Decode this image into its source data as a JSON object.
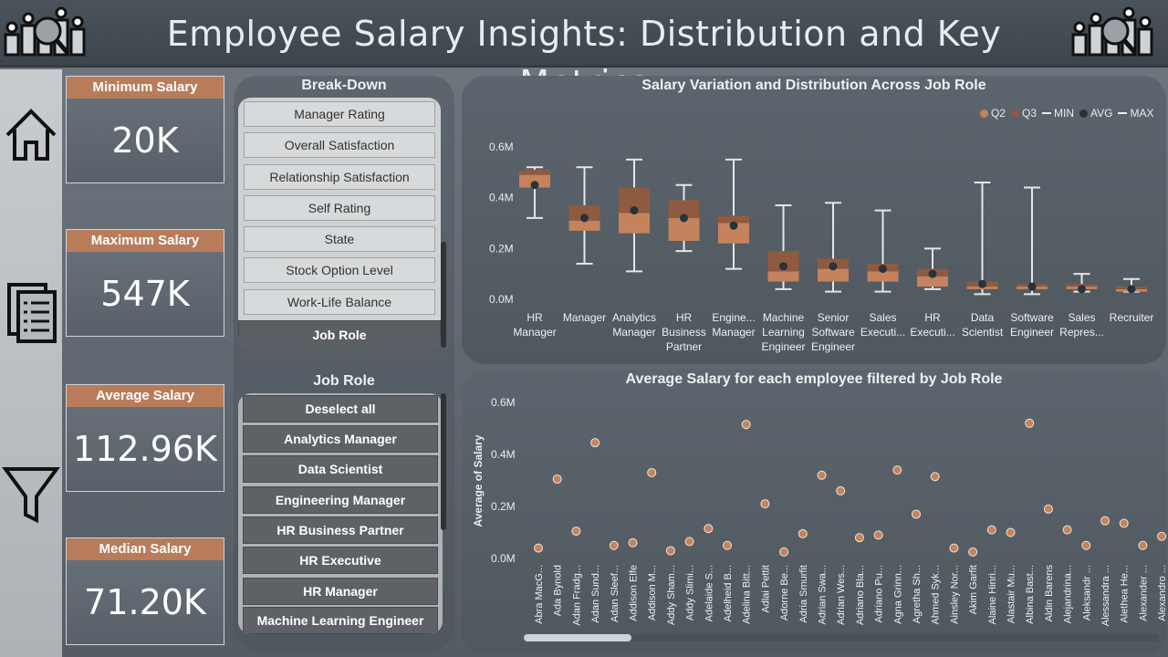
{
  "header": {
    "title": "Employee Salary Insights: Distribution and Key Metrics"
  },
  "colors": {
    "accent": "#b97c5a",
    "q2": "#c4835c",
    "q3": "#8e5a40",
    "avg": "#27323a",
    "whisker": "#e6e6e6"
  },
  "nav": {
    "items": [
      "home-icon",
      "document-icon",
      "filter-icon"
    ]
  },
  "kpis": [
    {
      "label": "Minimum Salary",
      "value": "20K"
    },
    {
      "label": "Maximum Salary",
      "value": "547K"
    },
    {
      "label": "Average Salary",
      "value": "112.96K"
    },
    {
      "label": "Median Salary",
      "value": "71.20K"
    }
  ],
  "breakdown": {
    "title": "Break-Down",
    "items": [
      "Manager Rating",
      "Overall Satisfaction",
      "Relationship Satisfaction",
      "Self Rating",
      "State",
      "Stock Option Level",
      "Work-Life Balance",
      "Job Role"
    ],
    "selected": "Job Role"
  },
  "jobrole_slicer": {
    "title": "Job Role",
    "items": [
      "Deselect all",
      "Analytics Manager",
      "Data Scientist",
      "Engineering Manager",
      "HR Business Partner",
      "HR Executive",
      "HR Manager",
      "Machine Learning Engineer"
    ]
  },
  "chart_data": [
    {
      "type": "box",
      "title": "Salary Variation and Distribution Across Job Role",
      "legend": [
        "Q2",
        "Q3",
        "MIN",
        "AVG",
        "MAX"
      ],
      "legend_position": "top-right",
      "ylim": [
        0,
        0.6
      ],
      "yticks": [
        "0.0M",
        "0.2M",
        "0.4M",
        "0.6M"
      ],
      "categories": [
        [
          "HR",
          "Manager"
        ],
        [
          "Manager"
        ],
        [
          "Analytics",
          "Manager"
        ],
        [
          "HR",
          "Business",
          "Partner"
        ],
        [
          "Engine...",
          "Manager"
        ],
        [
          "Machine",
          "Learning",
          "Engineer"
        ],
        [
          "Senior",
          "Software",
          "Engineer"
        ],
        [
          "Sales",
          "Executi..."
        ],
        [
          "HR",
          "Executi..."
        ],
        [
          "Data",
          "Scientist"
        ],
        [
          "Software",
          "Engineer"
        ],
        [
          "Sales",
          "Repres..."
        ],
        [
          "Recruiter"
        ]
      ],
      "min": [
        0.32,
        0.14,
        0.11,
        0.19,
        0.12,
        0.04,
        0.03,
        0.03,
        0.04,
        0.02,
        0.02,
        0.03,
        0.03
      ],
      "q1": [
        0.44,
        0.27,
        0.26,
        0.23,
        0.22,
        0.07,
        0.07,
        0.07,
        0.05,
        0.04,
        0.04,
        0.04,
        0.03
      ],
      "median": [
        0.49,
        0.31,
        0.34,
        0.32,
        0.3,
        0.11,
        0.12,
        0.11,
        0.09,
        0.05,
        0.05,
        0.05,
        0.04
      ],
      "q3": [
        0.51,
        0.37,
        0.44,
        0.39,
        0.33,
        0.19,
        0.16,
        0.14,
        0.12,
        0.07,
        0.06,
        0.06,
        0.05
      ],
      "avg": [
        0.45,
        0.32,
        0.35,
        0.32,
        0.29,
        0.13,
        0.13,
        0.12,
        0.1,
        0.06,
        0.05,
        0.04,
        0.04
      ],
      "max": [
        0.52,
        0.52,
        0.55,
        0.45,
        0.55,
        0.37,
        0.38,
        0.35,
        0.2,
        0.46,
        0.44,
        0.1,
        0.08
      ]
    },
    {
      "type": "scatter",
      "title": "Average Salary for each employee filtered by Job Role",
      "ylabel": "Average of Salary",
      "ylim": [
        0,
        0.6
      ],
      "yticks": [
        "0.0M",
        "0.2M",
        "0.4M",
        "0.6M"
      ],
      "categories": [
        "Abra MacG...",
        "Ada Bynold",
        "Adan Fradg...",
        "Adan Sund...",
        "Adan Sleef...",
        "Addison Elfe",
        "Addison M...",
        "Addy Sham...",
        "Addy Slimi...",
        "Adelaide S...",
        "Adelheid B...",
        "Adelina Bitt...",
        "Adlai Pettit",
        "Adorne Be...",
        "Adria Smurfit",
        "Adrian Swa...",
        "Adrian Wes...",
        "Adriano Bla...",
        "Adriano Pu...",
        "Agna Grinn...",
        "Agretha Sh...",
        "Ahmed Syk...",
        "Ainsley Nor...",
        "Akim Garfit",
        "Alaine Hinri...",
        "Alastair Mu...",
        "Albina Bast...",
        "Aldin Barens",
        "Alejandrina...",
        "Aleksandr ...",
        "Alessandra ...",
        "Alethea He...",
        "Alexander ...",
        "Alexandro ..."
      ],
      "values": [
        0.04,
        0.305,
        0.105,
        0.445,
        0.05,
        0.06,
        0.33,
        0.03,
        0.065,
        0.115,
        0.05,
        0.515,
        0.21,
        0.025,
        0.095,
        0.32,
        0.26,
        0.08,
        0.09,
        0.34,
        0.17,
        0.315,
        0.04,
        0.025,
        0.11,
        0.1,
        0.52,
        0.19,
        0.11,
        0.05,
        0.145,
        0.135,
        0.05,
        0.085
      ]
    }
  ]
}
